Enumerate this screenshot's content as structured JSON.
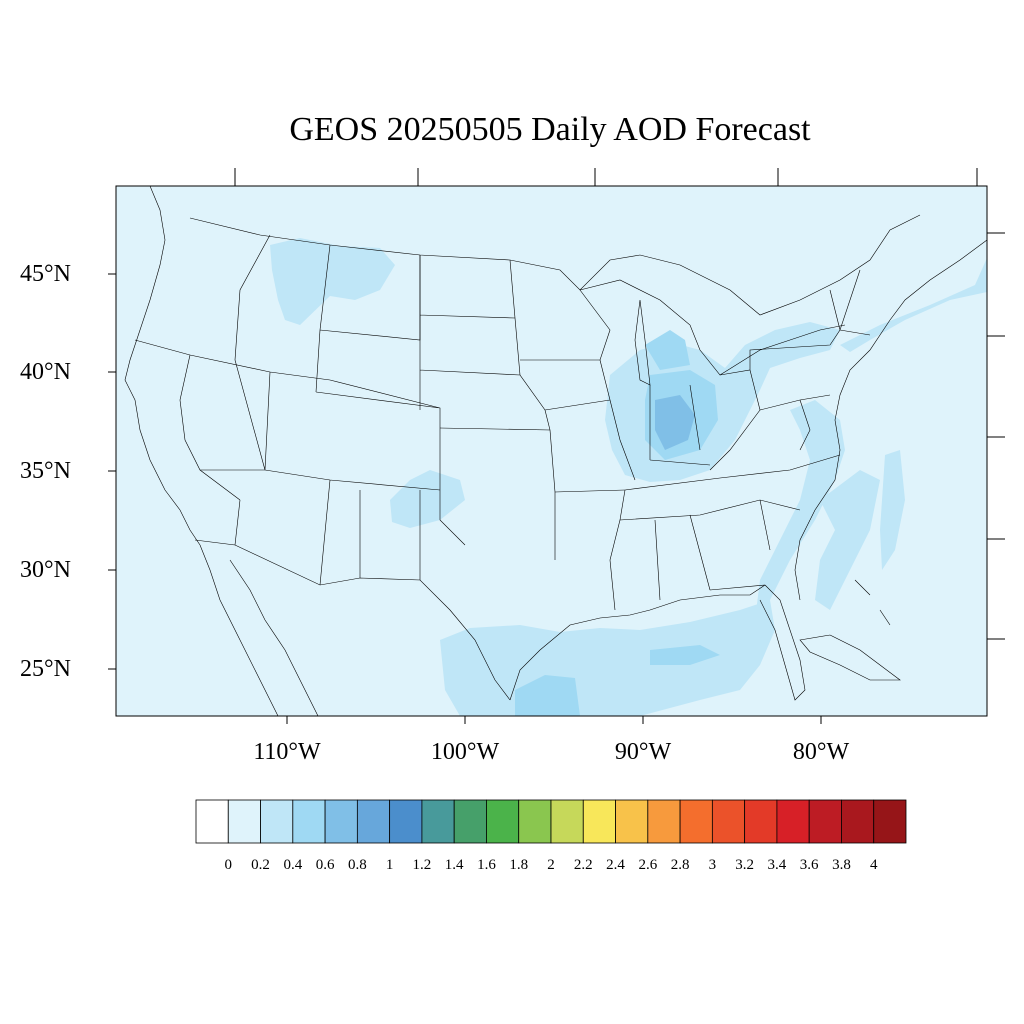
{
  "title": "GEOS 20250505 Daily AOD Forecast",
  "latitude_labels": [
    "45°N",
    "40°N",
    "35°N",
    "30°N",
    "25°N"
  ],
  "longitude_labels": [
    "110°W",
    "100°W",
    "90°W",
    "80°W"
  ],
  "colorbar": {
    "labels": [
      "0",
      "0.2",
      "0.4",
      "0.6",
      "0.8",
      "1",
      "1.2",
      "1.4",
      "1.6",
      "1.8",
      "2",
      "2.2",
      "2.4",
      "2.6",
      "2.8",
      "3",
      "3.2",
      "3.4",
      "3.6",
      "3.8",
      "4"
    ],
    "colors": [
      "#ffffff",
      "#dff3fb",
      "#bfe6f7",
      "#9fd9f3",
      "#80bfe7",
      "#67a7db",
      "#4b8ecc",
      "#489a9b",
      "#46a06a",
      "#4bb34a",
      "#8ac64f",
      "#c6d85a",
      "#f8e75a",
      "#f8c24a",
      "#f79a3d",
      "#f46e2d",
      "#eb522a",
      "#e33a28",
      "#d72027",
      "#bd1c24",
      "#a9181e",
      "#961518"
    ]
  },
  "colors": {
    "ocean_background": "#dff3fb",
    "aod_0_4_0_6": "#bfe6f7",
    "aod_0_6_0_8": "#9fd9f3",
    "aod_0_8_1_0": "#80bfe7",
    "boundary": "#000000"
  }
}
